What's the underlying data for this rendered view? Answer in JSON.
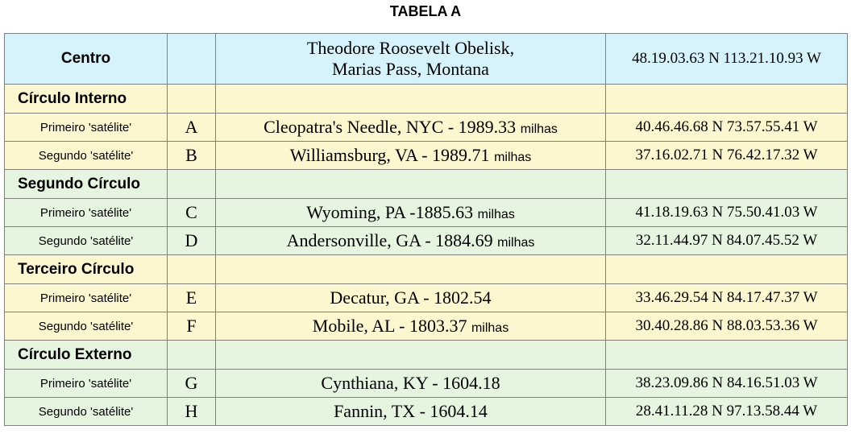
{
  "title": "TABELA  A",
  "header": {
    "label": "Centro",
    "place_line1": "Theodore Roosevelt Obelisk,",
    "place_line2": "Marias Pass, Montana",
    "coords": "48.19.03.63 N  113.21.10.93 W"
  },
  "circles": [
    {
      "name": "Círculo Interno",
      "rows": [
        {
          "label": "Primeiro 'satélite'",
          "letter": "A",
          "place": "Cleopatra's Needle, NYC - 1989.33",
          "unit": "milhas",
          "coords": "40.46.46.68 N  73.57.55.41 W"
        },
        {
          "label": "Segundo 'satélite'",
          "letter": "B",
          "place": "Williamsburg, VA  - 1989.71",
          "unit": "milhas",
          "coords": "37.16.02.71 N  76.42.17.32 W"
        }
      ]
    },
    {
      "name": "Segundo Círculo",
      "rows": [
        {
          "label": "Primeiro 'satélite'",
          "letter": "C",
          "place": "Wyoming, PA -1885.63",
          "unit": "milhas",
          "coords": "41.18.19.63 N  75.50.41.03 W"
        },
        {
          "label": "Segundo 'satélite'",
          "letter": "D",
          "place": "Andersonville, GA - 1884.69",
          "unit": "milhas",
          "coords": "32.11.44.97 N  84.07.45.52 W"
        }
      ]
    },
    {
      "name": "Terceiro Círculo",
      "rows": [
        {
          "label": "Primeiro 'satélite'",
          "letter": "E",
          "place": "Decatur, GA - 1802.54",
          "unit": "",
          "coords": "33.46.29.54 N  84.17.47.37 W"
        },
        {
          "label": "Segundo 'satélite'",
          "letter": "F",
          "place": "Mobile, AL - 1803.37",
          "unit": "milhas",
          "coords": "30.40.28.86 N  88.03.53.36 W"
        }
      ]
    },
    {
      "name": "Círculo Externo",
      "rows": [
        {
          "label": "Primeiro 'satélite'",
          "letter": "G",
          "place": "Cynthiana, KY - 1604.18",
          "unit": "",
          "coords": "38.23.09.86 N  84.16.51.03 W"
        },
        {
          "label": "Segundo 'satélite'",
          "letter": "H",
          "place": "Fannin, TX - 1604.14",
          "unit": "",
          "coords": "28.41.11.28 N  97.13.58.44 W"
        }
      ]
    }
  ],
  "colors": {
    "header_bg": "#d6f3fb",
    "yellow_bg": "#fdf7cf",
    "green_bg": "#e5f5df",
    "border": "#808080"
  }
}
